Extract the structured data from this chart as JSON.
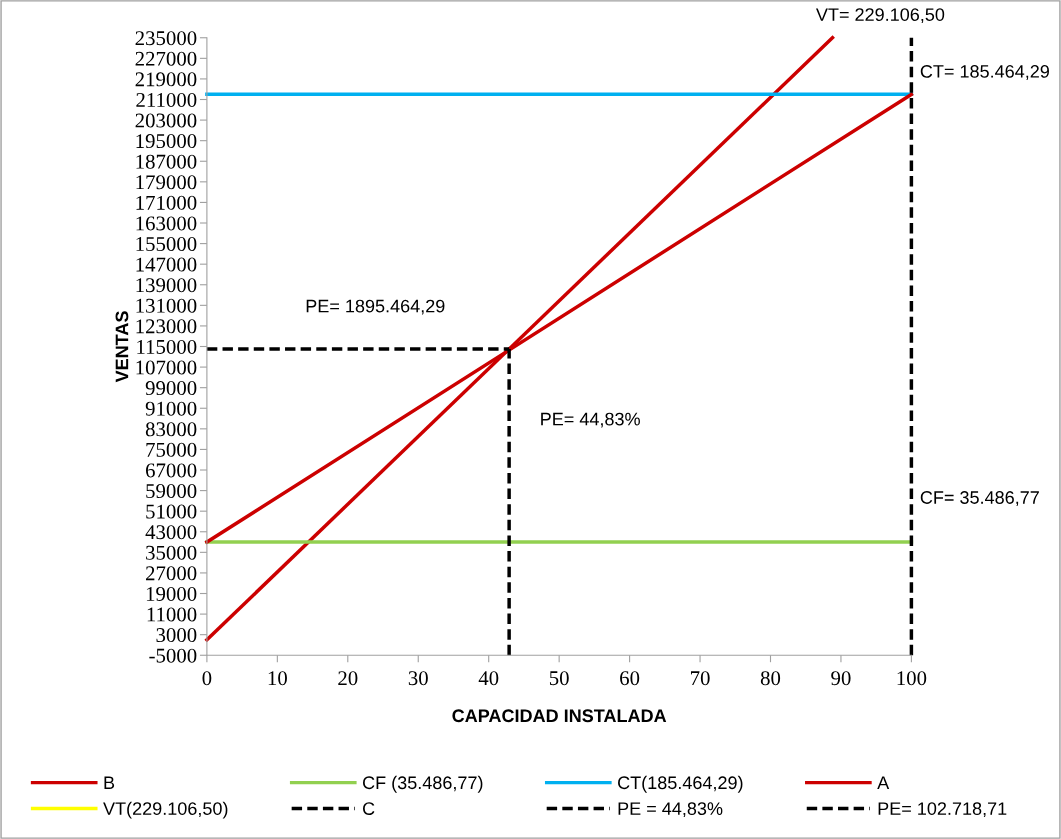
{
  "chart_data": {
    "type": "line",
    "xlabel": "CAPACIDAD INSTALADA",
    "ylabel": "VENTAS",
    "xlim": [
      0,
      100
    ],
    "xticks": [
      0,
      10,
      20,
      30,
      40,
      50,
      60,
      70,
      80,
      90,
      100
    ],
    "ylim": [
      -5000,
      235000
    ],
    "yticks": [
      -5000,
      3000,
      11000,
      19000,
      27000,
      35000,
      43000,
      51000,
      59000,
      67000,
      75000,
      83000,
      91000,
      99000,
      107000,
      115000,
      123000,
      131000,
      139000,
      147000,
      155000,
      163000,
      171000,
      179000,
      187000,
      195000,
      203000,
      211000,
      219000,
      227000,
      235000
    ],
    "grid": false,
    "legend": "bottom",
    "marker": "none",
    "series": [
      {
        "name": "B",
        "color": "#cc0000",
        "line_style": "solid",
        "x": [
          0,
          88.8
        ],
        "values": [
          1000,
          235000
        ]
      },
      {
        "name": "CF (35.486,77)",
        "color": "#92d050",
        "line_style": "solid",
        "x": [
          0,
          100
        ],
        "values": [
          39000,
          39000
        ]
      },
      {
        "name": "CT(185.464,29)",
        "color": "#00b0f0",
        "line_style": "solid",
        "x": [
          0,
          100
        ],
        "values": [
          213000,
          213000
        ]
      },
      {
        "name": "A",
        "color": "#cc0000",
        "line_style": "solid",
        "x": [
          0,
          100
        ],
        "values": [
          39000,
          213000
        ]
      },
      {
        "name": "VT(229.106,50)",
        "color": "#ffff00",
        "line_style": "solid"
      },
      {
        "name": "C",
        "color": "#000000",
        "line_style": "dashed",
        "x": [
          100,
          100
        ],
        "values": [
          -5000,
          235000
        ]
      },
      {
        "name": "PE = 44,83%",
        "color": "#000000",
        "line_style": "dashed",
        "x": [
          42.9,
          42.9
        ],
        "values": [
          -5000,
          114000
        ]
      },
      {
        "name": "PE= 102.718,71",
        "color": "#000000",
        "line_style": "dashed",
        "x": [
          0,
          42.9
        ],
        "values": [
          114000,
          114000
        ]
      }
    ],
    "annotations": [
      "VT= 229.106,50",
      "CT= 185.464,29",
      "PE= 1895.464,29",
      "PE= 44,83%",
      "CF= 35.486,77"
    ]
  }
}
